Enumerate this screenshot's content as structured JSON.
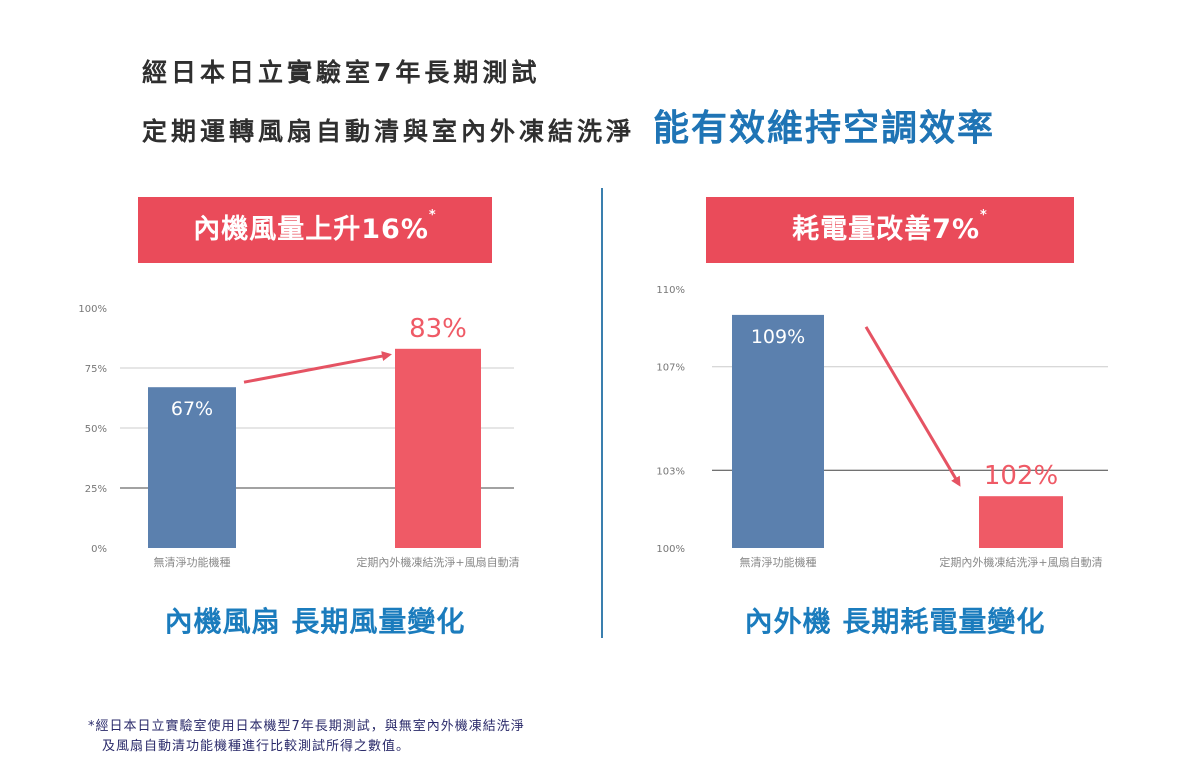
{
  "header": {
    "line1": "經日本日立實驗室7年長期測試",
    "line2": "定期運轉風扇自動清與室內外凍結洗淨",
    "highlight": "能有效維持空調效率"
  },
  "left_panel": {
    "banner_text": "內機風量上升16%",
    "banner_mark": "*",
    "caption": "內機風扇 長期風量變化"
  },
  "right_panel": {
    "banner_text": "耗電量改善7%",
    "banner_mark": "*",
    "caption": "內外機 長期耗電量變化"
  },
  "footnote": {
    "mark": "*",
    "line1": "經日本日立實驗室使用日本機型7年長期測試，與無室內外機凍結洗淨",
    "line2": "及風扇自動清功能機種進行比較測試所得之數值。"
  },
  "colors": {
    "bar_before": "#5b80ae",
    "bar_after": "#ef5a66",
    "banner": "#ea4b5a",
    "accent_blue": "#1b7cbd",
    "arrow": "#e55363"
  },
  "chart_data": [
    {
      "type": "bar",
      "categories": [
        "無清淨功能機種",
        "定期內外機凍結洗淨+風扇自動清"
      ],
      "values": [
        67,
        83
      ],
      "data_labels": [
        "67%",
        "83%"
      ],
      "y_ticks": [
        0,
        25,
        50,
        75,
        100
      ],
      "y_tick_labels": [
        "0%",
        "25%",
        "50%",
        "75%",
        "100%"
      ],
      "ylim": [
        0,
        100
      ],
      "grid": true,
      "arrow": "up"
    },
    {
      "type": "bar",
      "categories": [
        "無清淨功能機種",
        "定期內外機凍結洗淨+風扇自動清"
      ],
      "values": [
        109,
        102
      ],
      "data_labels": [
        "109%",
        "102%"
      ],
      "y_ticks": [
        100,
        103,
        107,
        110
      ],
      "y_tick_labels": [
        "100%",
        "103%",
        "107%",
        "110%"
      ],
      "ylim": [
        100,
        110
      ],
      "grid": true,
      "arrow": "down"
    }
  ]
}
